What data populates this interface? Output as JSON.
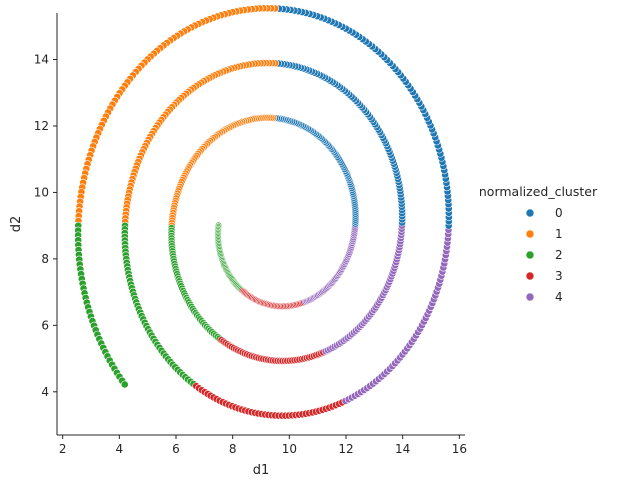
{
  "chart_data": {
    "type": "scatter",
    "title": "",
    "xlabel": "d1",
    "ylabel": "d2",
    "xlim": [
      1.8,
      16.2
    ],
    "ylim": [
      2.7,
      15.4
    ],
    "xticks": [
      "2",
      "4",
      "6",
      "8",
      "10",
      "12",
      "14",
      "16"
    ],
    "yticks": [
      "4",
      "6",
      "8",
      "10",
      "12",
      "14"
    ],
    "grid": false,
    "legend": {
      "title": "normalized_cluster",
      "placement": "right",
      "entries": [
        "0",
        "1",
        "2",
        "3",
        "4"
      ]
    },
    "colors": {
      "0": "#1f77b4",
      "1": "#ff7f0e",
      "2": "#2ca02c",
      "3": "#d62728",
      "4": "#9467bd"
    },
    "spiral": {
      "center": [
        9.5,
        9.0
      ],
      "r_start": 2.0,
      "r_growth_per_turn": 1.65,
      "start_angle_deg": 180,
      "turns": 3.12,
      "cluster_angle_ranges_deg": {
        "0": [
          [
            180,
            300
          ],
          [
            540,
            660
          ],
          [
            900,
            1020
          ]
        ],
        "1": [
          [
            270,
            360
          ],
          [
            630,
            720
          ],
          [
            990,
            1080
          ]
        ],
        "2": [
          [
            0,
            75
          ],
          [
            360,
            435
          ],
          [
            720,
            795
          ],
          [
            1080,
            1125
          ]
        ],
        "3": [
          [
            60,
            115
          ],
          [
            420,
            475
          ],
          [
            780,
            835
          ]
        ],
        "4": [
          [
            115,
            180
          ],
          [
            475,
            540
          ],
          [
            835,
            900
          ]
        ]
      }
    }
  }
}
